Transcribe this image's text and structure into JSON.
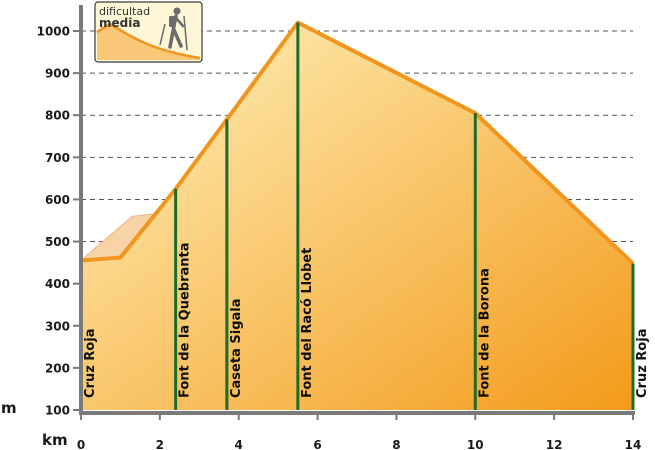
{
  "chart_data": {
    "type": "area",
    "difficulty": {
      "line1": "dificultad",
      "line2": "media"
    },
    "y_unit": "m",
    "x_unit": "km",
    "ylim": [
      100,
      1000
    ],
    "xlim": [
      0,
      14
    ],
    "y_ticks": [
      100,
      200,
      300,
      400,
      500,
      600,
      700,
      800,
      900,
      1000
    ],
    "x_ticks": [
      0,
      2,
      4,
      6,
      8,
      10,
      12,
      14
    ],
    "grid": "horizontal dashed",
    "profile": {
      "x": [
        0,
        1,
        2.4,
        3.7,
        5.5,
        10,
        14
      ],
      "y": [
        455,
        462,
        625,
        790,
        1020,
        805,
        448
      ]
    },
    "alt_profile": {
      "x": [
        0,
        1.3,
        1.8
      ],
      "y": [
        455,
        560,
        565
      ]
    },
    "waypoints": [
      {
        "km": 0,
        "label": "Cruz Roja"
      },
      {
        "km": 2.4,
        "label": "Font de la Quebranta"
      },
      {
        "km": 3.7,
        "label": "Caseta Sigala"
      },
      {
        "km": 5.5,
        "label": "Font del Racó Llobet"
      },
      {
        "km": 10,
        "label": "Font de la Borona"
      },
      {
        "km": 14,
        "label": "Cruz Roja"
      }
    ],
    "colors": {
      "line": "#f0961e",
      "fill_light": "#fff4c0",
      "fill_dark": "#f39a1a",
      "marker": "#1e6b2a",
      "axis": "#7a7a7a",
      "grid": "#555555"
    }
  }
}
